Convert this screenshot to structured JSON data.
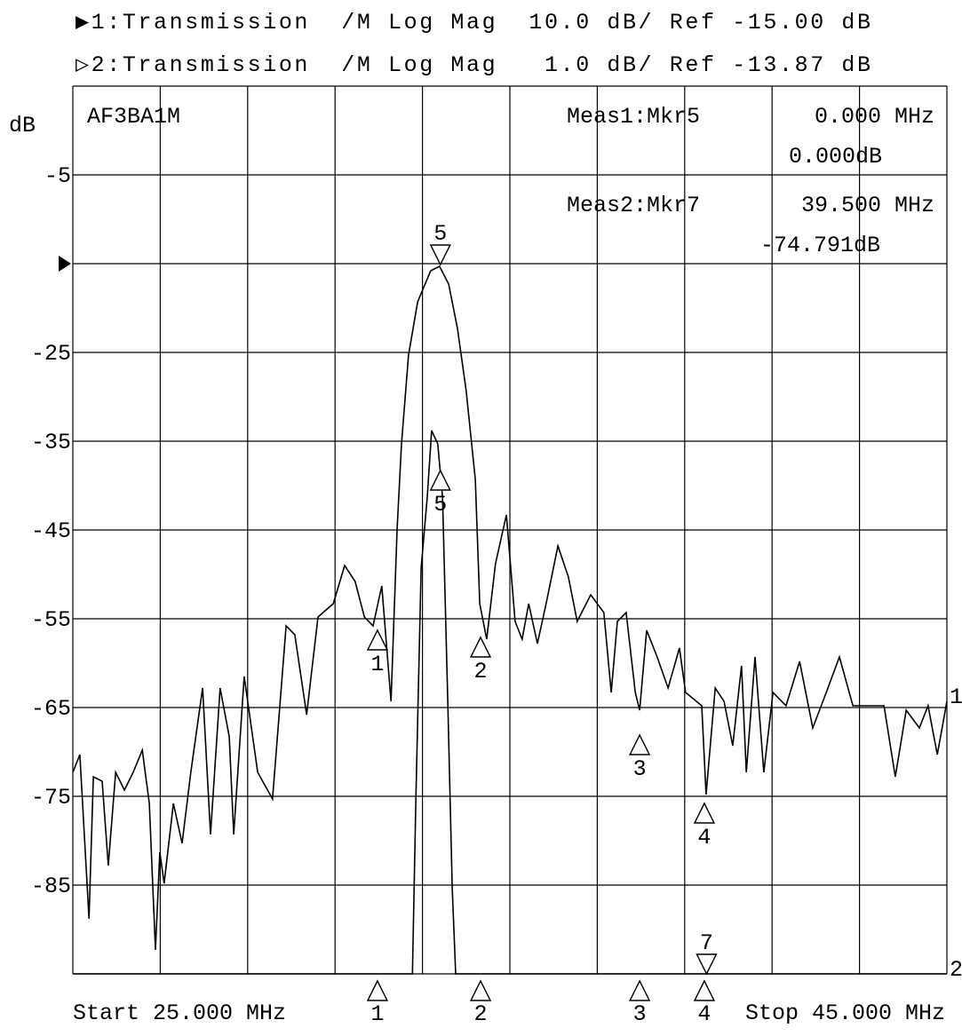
{
  "chart_data": {
    "type": "line",
    "ylabel": "dB",
    "xlim": [
      25,
      45
    ],
    "ylim": [
      -95,
      5
    ],
    "y2lim": [
      -21.87,
      -11.87
    ],
    "yticks": [
      -5,
      -25,
      -35,
      -45,
      -55,
      -65,
      -75,
      -85
    ],
    "xgrid": [
      25,
      27,
      29,
      31,
      33,
      35,
      37,
      39,
      41,
      43,
      45
    ],
    "ygrid": [
      5,
      -5,
      -15,
      -25,
      -35,
      -45,
      -55,
      -65,
      -75,
      -85,
      -95
    ],
    "reference_level": -15,
    "grid": true,
    "start_label": "Start 25.000 MHz",
    "stop_label": "Stop 45.000 MHz",
    "annotations": {
      "title": "AF3BA1M",
      "meas1": "Meas1:Mkr5",
      "meas1_freq": "0.000 MHz",
      "meas1_value": "0.000dB",
      "meas2": "Meas2:Mkr7",
      "meas2_freq": "39.500 MHz",
      "meas2_value": "-74.791dB"
    },
    "series": [
      {
        "name": "▶1:Transmission  /M Log Mag  10.0 dB/ Ref -15.00 dB",
        "end_label": "1",
        "color": "#000000",
        "x": [
          25.0,
          25.16,
          25.37,
          25.47,
          25.67,
          25.81,
          25.98,
          26.18,
          26.38,
          26.59,
          26.75,
          26.89,
          26.99,
          27.09,
          27.3,
          27.5,
          27.7,
          27.97,
          28.15,
          28.37,
          28.58,
          28.68,
          28.92,
          29.23,
          29.57,
          29.88,
          30.08,
          30.35,
          30.61,
          30.96,
          31.22,
          31.46,
          31.67,
          31.87,
          32.07,
          32.28,
          32.42,
          32.52,
          32.68,
          32.89,
          33.19,
          33.39,
          33.6,
          33.8,
          34.0,
          34.21,
          34.31,
          34.47,
          34.67,
          34.92,
          35.12,
          35.28,
          35.43,
          35.63,
          35.83,
          36.1,
          36.34,
          36.54,
          36.85,
          37.15,
          37.32,
          37.46,
          37.66,
          37.87,
          37.97,
          38.13,
          38.37,
          38.62,
          38.88,
          39.02,
          39.39,
          39.49,
          39.7,
          39.9,
          40.1,
          40.3,
          40.41,
          40.61,
          40.81,
          41.02,
          41.32,
          41.63,
          41.93,
          42.24,
          42.54,
          42.85,
          43.25,
          43.56,
          43.82,
          44.07,
          44.37,
          44.57,
          44.78,
          45.0
        ],
        "values": [
          -72.3,
          -70.3,
          -88.8,
          -72.8,
          -73.3,
          -82.8,
          -72.3,
          -74.3,
          -72.3,
          -69.8,
          -75.8,
          -92.3,
          -81.3,
          -84.8,
          -75.8,
          -80.3,
          -72.3,
          -62.8,
          -79.3,
          -62.8,
          -68.3,
          -79.3,
          -61.5,
          -72.3,
          -75.3,
          -55.8,
          -56.8,
          -65.8,
          -54.8,
          -53.3,
          -49,
          -50.8,
          -54.8,
          -55.8,
          -51.3,
          -64.3,
          -44.8,
          -35.3,
          -25.3,
          -19.3,
          -15.8,
          -15.3,
          -17.3,
          -22.3,
          -29.3,
          -39.3,
          -53.3,
          -57.3,
          -48.8,
          -43.3,
          -55.3,
          -57.3,
          -53.3,
          -57.8,
          -53.3,
          -46.8,
          -50.3,
          -55.3,
          -52.3,
          -54.3,
          -63.3,
          -55.3,
          -54.3,
          -63.3,
          -65.3,
          -56.3,
          -59.3,
          -62.8,
          -58.3,
          -63.3,
          -64.8,
          -74.8,
          -62.8,
          -64.3,
          -69.3,
          -60.3,
          -72.3,
          -59.3,
          -72.3,
          -63.3,
          -64.8,
          -59.8,
          -67.3,
          -63.3,
          -59.3,
          -64.8,
          -64.8,
          -64.8,
          -72.8,
          -65.3,
          -67.3,
          -64.8,
          -70.3,
          -64.3
        ]
      },
      {
        "name": "▷2:Transmission  /M Log Mag   1.0 dB/ Ref -13.87 dB",
        "end_label": "2",
        "color": "#000000",
        "axis": "y2",
        "x": [
          25,
          32.77,
          32.85,
          32.97,
          33.11,
          33.21,
          33.35,
          33.46,
          33.58,
          33.68,
          33.76,
          45
        ],
        "values": [
          -21.87,
          -21.87,
          -19.9,
          -17.3,
          -16.5,
          -15.75,
          -15.9,
          -16.5,
          -18.8,
          -20.9,
          -21.87,
          -21.87
        ]
      }
    ],
    "markers": [
      {
        "label": "1",
        "series": 0,
        "x": 31.97,
        "y": -56.3,
        "dir": "up"
      },
      {
        "label": "2",
        "series": 0,
        "x": 34.33,
        "y": -57.1,
        "dir": "up"
      },
      {
        "label": "3",
        "series": 0,
        "x": 37.97,
        "y": -68.1,
        "dir": "up"
      },
      {
        "label": "4",
        "series": 0,
        "x": 39.45,
        "y": -75.8,
        "dir": "up"
      },
      {
        "label": "5",
        "series": 0,
        "x": 33.41,
        "y": -15.1,
        "dir": "down"
      },
      {
        "label": "5",
        "series": 1,
        "x": 33.41,
        "y": -16.2,
        "dir": "up"
      },
      {
        "label": "7",
        "series": 1,
        "x": 39.5,
        "dir": "down"
      }
    ]
  }
}
